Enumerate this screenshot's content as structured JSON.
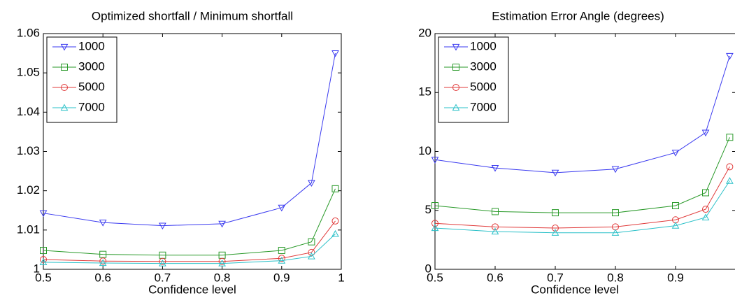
{
  "chart_data": [
    {
      "type": "line",
      "title": "Optimized shortfall / Minimum shortfall",
      "x_label": "Confidence level",
      "x": [
        0.5,
        0.6,
        0.7,
        0.8,
        0.9,
        0.95,
        0.99
      ],
      "xlim": [
        0.5,
        1
      ],
      "xticks": [
        0.5,
        0.6,
        0.7,
        0.8,
        0.9,
        1
      ],
      "ylim": [
        1,
        1.06
      ],
      "yticks": [
        1,
        1.01,
        1.02,
        1.03,
        1.04,
        1.05,
        1.06
      ],
      "legend": "top-left",
      "series": [
        {
          "name": "1000",
          "color": "#3a3af0",
          "marker": "triangle-down",
          "values": [
            1.0143,
            1.0119,
            1.0111,
            1.0116,
            1.0157,
            1.022,
            1.055
          ]
        },
        {
          "name": "3000",
          "color": "#2a9a2a",
          "marker": "square",
          "values": [
            1.0048,
            1.0038,
            1.0036,
            1.0036,
            1.0048,
            1.007,
            1.0205
          ]
        },
        {
          "name": "5000",
          "color": "#e03a3a",
          "marker": "circle",
          "values": [
            1.0025,
            1.0021,
            1.002,
            1.002,
            1.0028,
            1.0043,
            1.0123
          ]
        },
        {
          "name": "7000",
          "color": "#2ac0c8",
          "marker": "triangle-up",
          "values": [
            1.0018,
            1.0016,
            1.0015,
            1.0015,
            1.0022,
            1.0033,
            1.009
          ]
        }
      ]
    },
    {
      "type": "line",
      "title": "Estimation Error Angle (degrees)",
      "x_label": "Confidence level",
      "x": [
        0.5,
        0.6,
        0.7,
        0.8,
        0.9,
        0.95,
        0.99
      ],
      "xlim": [
        0.5,
        1
      ],
      "xticks": [
        0.5,
        0.6,
        0.7,
        0.8,
        0.9
      ],
      "ylim": [
        0,
        20
      ],
      "yticks": [
        0,
        5,
        10,
        15,
        20
      ],
      "legend": "top-left",
      "series": [
        {
          "name": "1000",
          "color": "#3a3af0",
          "marker": "triangle-down",
          "values": [
            9.3,
            8.6,
            8.2,
            8.5,
            9.9,
            11.6,
            18.1
          ]
        },
        {
          "name": "3000",
          "color": "#2a9a2a",
          "marker": "square",
          "values": [
            5.4,
            4.9,
            4.8,
            4.8,
            5.4,
            6.5,
            11.2
          ]
        },
        {
          "name": "5000",
          "color": "#e03a3a",
          "marker": "circle",
          "values": [
            3.9,
            3.6,
            3.5,
            3.6,
            4.2,
            5.1,
            8.7
          ]
        },
        {
          "name": "7000",
          "color": "#2ac0c8",
          "marker": "triangle-up",
          "values": [
            3.5,
            3.2,
            3.1,
            3.1,
            3.7,
            4.4,
            7.5
          ]
        }
      ]
    }
  ]
}
